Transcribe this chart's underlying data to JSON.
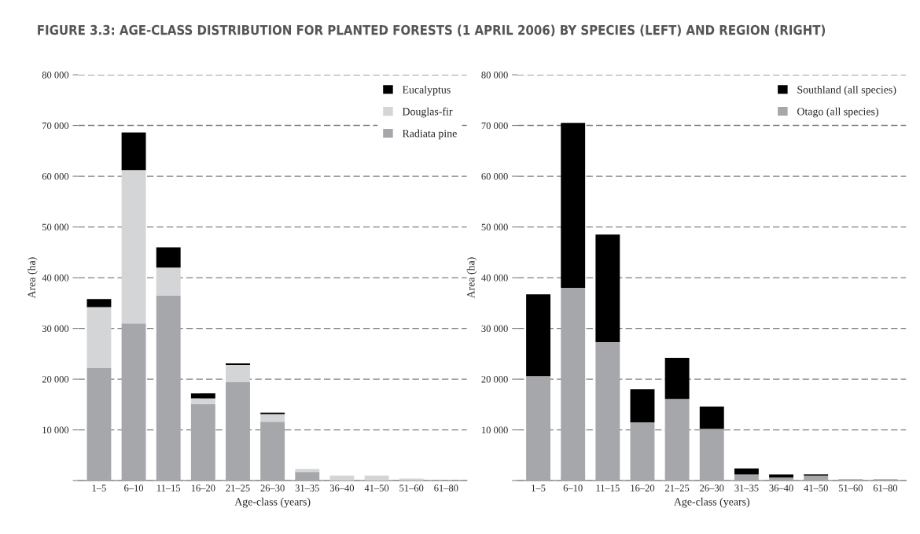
{
  "chart_data": [
    {
      "type": "bar",
      "title": "FIGURE 3.3: AGE-CLASS DISTRIBUTION FOR PLANTED FORESTS (1 APRIL 2006) BY SPECIES (LEFT) AND REGION (RIGHT)",
      "xlabel": "Age-class (years)",
      "ylabel": "Area (ha)",
      "stacked": true,
      "legend": "top right",
      "grid": "y",
      "categories": [
        "1–5",
        "6–10",
        "11–15",
        "16–20",
        "21–25",
        "26–30",
        "31–35",
        "36–40",
        "41–50",
        "51–60",
        "61–80"
      ],
      "ylim": [
        0,
        80000
      ],
      "yticks": [
        {
          "value": 0,
          "label": null
        },
        {
          "value": 10000,
          "label": "10 000"
        },
        {
          "value": 20000,
          "label": "20 000"
        },
        {
          "value": 30000,
          "label": "30 000"
        },
        {
          "value": 40000,
          "label": "40 000"
        },
        {
          "value": 50000,
          "label": "50 000"
        },
        {
          "value": 60000,
          "label": "60 000"
        },
        {
          "value": 70000,
          "label": "70 000"
        },
        {
          "value": 80000,
          "label": "80 000"
        }
      ],
      "series": [
        {
          "name": "Radiata pine",
          "color": "#a6a7aa",
          "values": [
            22200,
            31000,
            36500,
            15100,
            19400,
            11600,
            1700,
            0,
            0,
            0,
            0
          ]
        },
        {
          "name": "Douglas-fir",
          "color": "#d4d5d7",
          "values": [
            12000,
            30200,
            5500,
            1100,
            3400,
            1500,
            600,
            1000,
            1000,
            400,
            0
          ]
        },
        {
          "name": "Eucalyptus",
          "color": "#000000",
          "values": [
            1600,
            7400,
            4000,
            1000,
            300,
            300,
            0,
            0,
            0,
            0,
            0
          ]
        }
      ]
    },
    {
      "type": "bar",
      "xlabel": "Age-class (years)",
      "ylabel": "Area (ha)",
      "stacked": true,
      "legend": "top right",
      "grid": "y",
      "categories": [
        "1–5",
        "6–10",
        "11–15",
        "16–20",
        "21–25",
        "26–30",
        "31–35",
        "36–40",
        "41–50",
        "51–60",
        "61–80"
      ],
      "ylim": [
        0,
        80000
      ],
      "yticks": [
        {
          "value": 0,
          "label": null
        },
        {
          "value": 10000,
          "label": "10 000"
        },
        {
          "value": 20000,
          "label": "20 000"
        },
        {
          "value": 30000,
          "label": "30 000"
        },
        {
          "value": 40000,
          "label": "40 000"
        },
        {
          "value": 50000,
          "label": "50 000"
        },
        {
          "value": 60000,
          "label": "60 000"
        },
        {
          "value": 70000,
          "label": "70 000"
        },
        {
          "value": 80000,
          "label": "80 000"
        }
      ],
      "series": [
        {
          "name": "Otago (all species)",
          "color": "#a6a7aa",
          "values": [
            20600,
            38000,
            27300,
            11500,
            16100,
            10200,
            1200,
            600,
            1000,
            300,
            300
          ]
        },
        {
          "name": "Southland (all species)",
          "color": "#000000",
          "values": [
            16100,
            32500,
            21200,
            6500,
            8100,
            4400,
            1200,
            600,
            200,
            0,
            0
          ]
        }
      ]
    }
  ]
}
